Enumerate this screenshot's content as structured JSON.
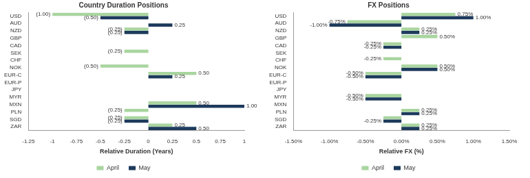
{
  "chart_data": [
    {
      "type": "bar",
      "title": "Country Duration Positions",
      "orientation": "horizontal",
      "categories": [
        "USD",
        "AUD",
        "NZD",
        "GBP",
        "CAD",
        "SEK",
        "CHF",
        "NOK",
        "EUR-C",
        "EUR-P",
        "JPY",
        "MYR",
        "MXN",
        "PLN",
        "SGD",
        "ZAR"
      ],
      "series": [
        {
          "name": "April",
          "color": "#a9d59f",
          "values": [
            -1.0,
            0,
            -0.25,
            0,
            0,
            -0.25,
            0,
            -0.5,
            0.5,
            0,
            0,
            0,
            0.5,
            -0.25,
            -0.25,
            0.25
          ],
          "value_labels": [
            "(1.00)",
            null,
            "(0.25)",
            null,
            null,
            "(0.25)",
            null,
            "(0.50)",
            "0.50",
            null,
            null,
            null,
            "0.50",
            "(0.25)",
            "(0.25)",
            "0.25"
          ]
        },
        {
          "name": "May",
          "color": "#1d3a5c",
          "values": [
            -0.5,
            0.25,
            -0.25,
            0,
            0,
            0,
            0,
            0,
            0.25,
            0,
            0,
            0,
            1.0,
            0,
            -0.25,
            0.5
          ],
          "value_labels": [
            "(0.50)",
            "0.25",
            "(0.25)",
            null,
            null,
            null,
            null,
            null,
            "0.25",
            null,
            null,
            null,
            "1.00",
            null,
            "(0.25)",
            "0.50"
          ]
        }
      ],
      "xlabel": "Relative Duration (Years)",
      "xlim": [
        -1.25,
        1
      ],
      "xticks": [
        -1.25,
        -1,
        -0.75,
        -0.5,
        -0.25,
        0,
        0.25,
        0.5,
        0.75,
        1
      ],
      "grid": false,
      "legend": "bottom",
      "data_labels": true
    },
    {
      "type": "bar",
      "title": "FX Positions",
      "orientation": "horizontal",
      "categories": [
        "USD",
        "AUD",
        "NZD",
        "GBP",
        "CAD",
        "SEK",
        "CHF",
        "NOK",
        "EUR-C",
        "EUR-P",
        "JPY",
        "MYR",
        "MXN",
        "PLN",
        "SGD",
        "ZAR"
      ],
      "series": [
        {
          "name": "April",
          "color": "#a9d59f",
          "values": [
            0.75,
            -0.75,
            0.25,
            0.5,
            -0.25,
            0,
            -0.25,
            0.5,
            -0.5,
            0,
            0,
            -0.5,
            0,
            0.25,
            -0.25,
            0.25
          ],
          "value_labels": [
            "0.75%",
            "-0.75%",
            "0.25%",
            "0.50%",
            "-0.25%",
            null,
            "-0.25%",
            "0.50%",
            "-0.50%",
            null,
            null,
            "-0.50%",
            null,
            "0.25%",
            null,
            "0.25%"
          ]
        },
        {
          "name": "May",
          "color": "#1d3a5c",
          "values": [
            1.0,
            -1.0,
            0.25,
            0,
            -0.25,
            0,
            0,
            0.5,
            -0.5,
            0,
            0,
            -0.5,
            0,
            0.25,
            -0.25,
            0.25
          ],
          "value_labels": [
            "1.00%",
            "-1.00%",
            "0.25%",
            null,
            "-0.25%",
            null,
            null,
            "0.50%",
            "-0.50%",
            null,
            null,
            "-0.50%",
            null,
            "0.25%",
            "-0.25%",
            "0.25%"
          ]
        }
      ],
      "xlabel": "Relative FX (%)",
      "xlim": [
        -1.5,
        1.5
      ],
      "xticks": [
        {
          "value": -1.5,
          "label": "-1.50%"
        },
        {
          "value": -1.0,
          "label": "-1.00%"
        },
        {
          "value": -0.5,
          "label": "-0.50%"
        },
        {
          "value": 0,
          "label": "0.00%"
        },
        {
          "value": 0.5,
          "label": "0.50%"
        },
        {
          "value": 1.0,
          "label": "1.00%"
        },
        {
          "value": 1.5,
          "label": "1.50%"
        }
      ],
      "grid": false,
      "legend": "bottom",
      "data_labels": true
    }
  ]
}
